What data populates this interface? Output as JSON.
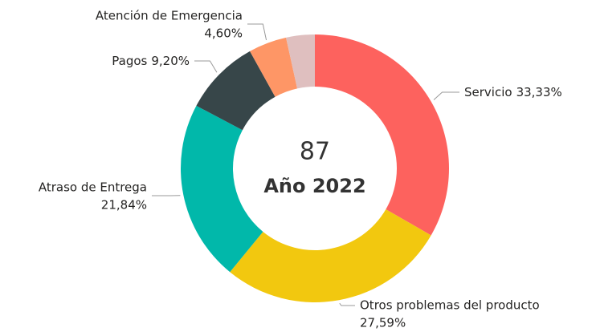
{
  "chart_data": {
    "type": "donut",
    "total": 87,
    "subtitle": "Año 2022",
    "categories": [
      "Servicio",
      "Otros problemas del producto",
      "Atraso de Entrega",
      "Pagos",
      "Atención de Emergencia",
      null
    ],
    "values": [
      33.33,
      27.59,
      21.84,
      9.2,
      4.6,
      3.45
    ],
    "value_labels": [
      "33,33%",
      "27,59%",
      "21,84%",
      "9,20%",
      "4,60%",
      null
    ],
    "colors": [
      "#fd625e",
      "#f2c80f",
      "#01b8aa",
      "#374649",
      "#fe9666",
      "#dfbfbf"
    ]
  }
}
